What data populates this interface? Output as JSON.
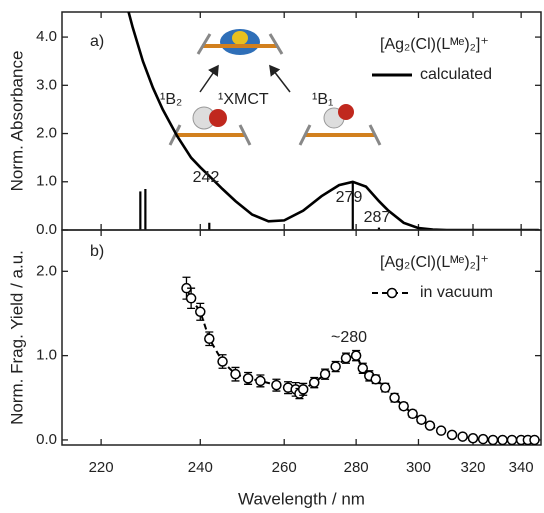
{
  "chart_data": [
    {
      "type": "line",
      "x_scale": "reciprocal",
      "xlim": [
        213,
        349
      ],
      "ylim": [
        0,
        4.52
      ],
      "yticks": [
        {
          "value": 0,
          "label": "0.0"
        },
        {
          "value": 1,
          "label": "1.0"
        },
        {
          "value": 2,
          "label": "2.0"
        },
        {
          "value": 3,
          "label": "3.0"
        },
        {
          "value": 4,
          "label": "4.0"
        }
      ],
      "ylabel": "Norm. Absorbance",
      "legend_title": "[Ag₂(Cl)(Lᴹᵉ)₂]⁺",
      "series": [
        {
          "name": "calculated",
          "color": "#000000",
          "x": [
            224,
            226,
            228,
            230,
            232,
            235,
            238,
            240,
            242,
            245,
            248,
            252,
            256,
            260,
            265,
            270,
            275,
            279,
            283,
            287,
            290,
            295,
            300,
            305,
            310,
            320,
            330,
            340,
            348
          ],
          "values": [
            5.0,
            4.2,
            3.5,
            2.95,
            2.5,
            1.95,
            1.5,
            1.3,
            1.12,
            0.85,
            0.6,
            0.32,
            0.18,
            0.2,
            0.4,
            0.7,
            0.93,
            1.0,
            0.9,
            0.6,
            0.4,
            0.15,
            0.04,
            0.01,
            0,
            0,
            0,
            0,
            0
          ]
        }
      ],
      "sticks": {
        "color": "#000000",
        "x": [
          227.5,
          228.5,
          242,
          279,
          287
        ],
        "values": [
          0.8,
          0.85,
          0.15,
          1.0,
          0.05
        ]
      },
      "annotations": [
        "a)",
        "¹B₂",
        "¹XMCT",
        "¹B₁",
        "242",
        "279",
        "287"
      ]
    },
    {
      "type": "errorline",
      "x_scale": "reciprocal",
      "xlim": [
        213,
        349
      ],
      "ylim": [
        -0.06,
        2.49
      ],
      "xticks": [
        220,
        240,
        260,
        280,
        300,
        320,
        340
      ],
      "yticks": [
        {
          "value": 0,
          "label": "0.0"
        },
        {
          "value": 1,
          "label": "1.0"
        },
        {
          "value": 2,
          "label": "2.0"
        }
      ],
      "xlabel": "Wavelength / nm",
      "ylabel": "Norm. Frag. Yield / a.u.",
      "legend_title": "[Ag₂(Cl)(Lᴹᵉ)₂]⁺",
      "line_style": "dashed",
      "series": [
        {
          "name": "in vacuum",
          "color": "#000000",
          "x": [
            237,
            238,
            240,
            242,
            245,
            248,
            251,
            254,
            258,
            261,
            263,
            264,
            265,
            268,
            271,
            274,
            277,
            280,
            282,
            284,
            286,
            289,
            292,
            295,
            298,
            301,
            304,
            308,
            312,
            316,
            320,
            324,
            328,
            332,
            336,
            340,
            343,
            346
          ],
          "values": [
            1.8,
            1.68,
            1.52,
            1.2,
            0.93,
            0.78,
            0.73,
            0.7,
            0.65,
            0.62,
            0.6,
            0.55,
            0.6,
            0.68,
            0.78,
            0.87,
            0.97,
            1.0,
            0.85,
            0.76,
            0.72,
            0.62,
            0.5,
            0.4,
            0.31,
            0.24,
            0.17,
            0.11,
            0.06,
            0.04,
            0.02,
            0.01,
            0,
            0,
            0,
            0,
            0,
            0
          ],
          "errors": [
            0.13,
            0.12,
            0.1,
            0.08,
            0.08,
            0.08,
            0.07,
            0.07,
            0.07,
            0.07,
            0.08,
            0.06,
            0.07,
            0.06,
            0.06,
            0.06,
            0.06,
            0.06,
            0.06,
            0.06,
            0.05,
            0.05,
            0.05,
            0.04,
            0.04,
            0.04,
            0.03,
            0.03,
            0.03,
            0.03,
            0.02,
            0.02,
            0.02,
            0.02,
            0.02,
            0.02,
            0.02,
            0.02
          ]
        }
      ],
      "annotations": [
        "b)",
        "~280"
      ]
    }
  ]
}
